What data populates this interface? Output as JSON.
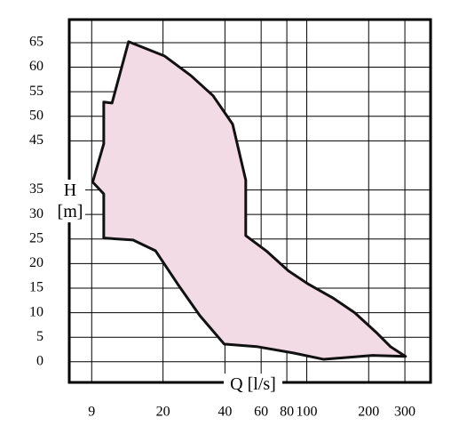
{
  "chart_data": {
    "type": "area",
    "xlabel": "Q [l/s]",
    "ylabel": "H [m]",
    "xscale": "log",
    "grid": true,
    "xlim": [
      7,
      400
    ],
    "ylim": [
      -4.2,
      69.7
    ],
    "xticks": [
      9,
      20,
      40,
      60,
      80,
      100,
      200,
      300
    ],
    "yticks": [
      0,
      5,
      10,
      15,
      20,
      25,
      30,
      35,
      45,
      50,
      55,
      60,
      65
    ],
    "series": [
      {
        "color": "#f3dbe6",
        "x": [
          13.6,
          20.3,
          27.3,
          35.0,
          43.6,
          50.5,
          50.5,
          63.5,
          81.5,
          102,
          134,
          171,
          220,
          255,
          302,
          209,
          121,
          86,
          57,
          39.7,
          30.2,
          23.6,
          18.4,
          14.3,
          10.3,
          10.3,
          9.1,
          10.3,
          10.3,
          11.3
        ],
        "y": [
          65.2,
          62.3,
          58.3,
          54.2,
          48.4,
          37,
          25.7,
          22.6,
          18.5,
          15.8,
          13,
          10,
          5.8,
          3.1,
          1.1,
          1.3,
          0.5,
          1.8,
          3.1,
          3.6,
          9.4,
          15.8,
          22.6,
          24.8,
          25.2,
          34.2,
          36.6,
          44.4,
          52.9,
          52.7
        ]
      }
    ]
  }
}
